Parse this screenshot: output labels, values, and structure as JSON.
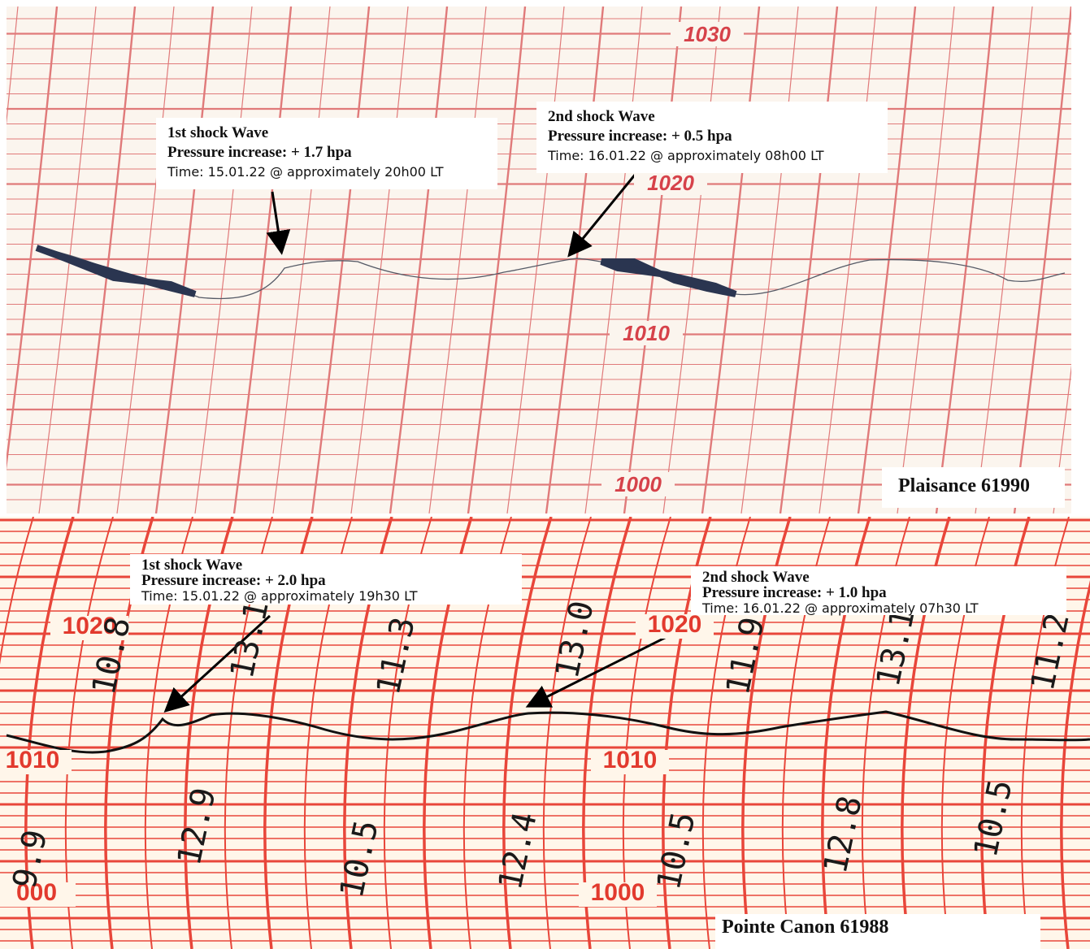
{
  "panels": [
    {
      "station": "Plaisance 61990",
      "scale_labels": [
        "1030",
        "1020",
        "1010",
        "1000"
      ],
      "annotations": [
        {
          "title": "1st shock Wave",
          "pressure": "Pressure increase: + 1.7 hpa",
          "time": "Time:  15.01.22 @ approximately 20h00 LT"
        },
        {
          "title": "2nd shock Wave",
          "pressure": "Pressure increase: + 0.5 hpa",
          "time": "Time:  16.01.22 @ approximately 08h00 LT"
        }
      ]
    },
    {
      "station": "Pointe Canon 61988",
      "scale_labels": [
        "1020",
        "1020",
        "1010",
        "1010",
        "000",
        "1000"
      ],
      "annotations": [
        {
          "title": "1st shock Wave",
          "pressure": "Pressure increase: + 2.0 hpa",
          "time": "Time: 15.01.22  @ approximately 19h30 LT"
        },
        {
          "title": "2nd shock Wave",
          "pressure": "Pressure increase: + 1.0 hpa",
          "time": "Time: 16.01.22  @ approximately 07h30 LT"
        }
      ],
      "handwritten": [
        "10.8",
        "13.1",
        "11.3",
        "13.0",
        "11.9",
        "13.1",
        "11.2",
        "9.9",
        "12.9",
        "10.5",
        "12.4",
        "10.5",
        "12.8",
        "10.5"
      ]
    }
  ]
}
